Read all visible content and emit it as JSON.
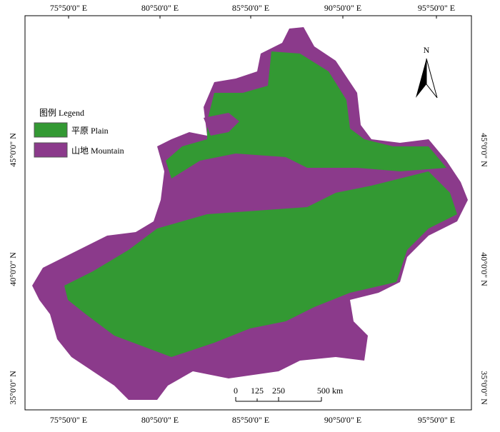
{
  "map": {
    "lon_labels": [
      "75°50'0\" E",
      "80°50'0\" E",
      "85°50'0\" E",
      "90°50'0\" E",
      "95°50'0\" E"
    ],
    "lat_labels": [
      "45°0'0\" N",
      "40°0'0\" N",
      "35°0'0\" N"
    ],
    "legend": {
      "title": "图例  Legend",
      "items": [
        {
          "label": "平原 Plain",
          "color": "#339933"
        },
        {
          "label": "山地  Mountain",
          "color": "#8b3a8b"
        }
      ]
    },
    "north": "N",
    "scale": {
      "labels": [
        "0",
        "125",
        "250",
        "500 km"
      ]
    }
  }
}
